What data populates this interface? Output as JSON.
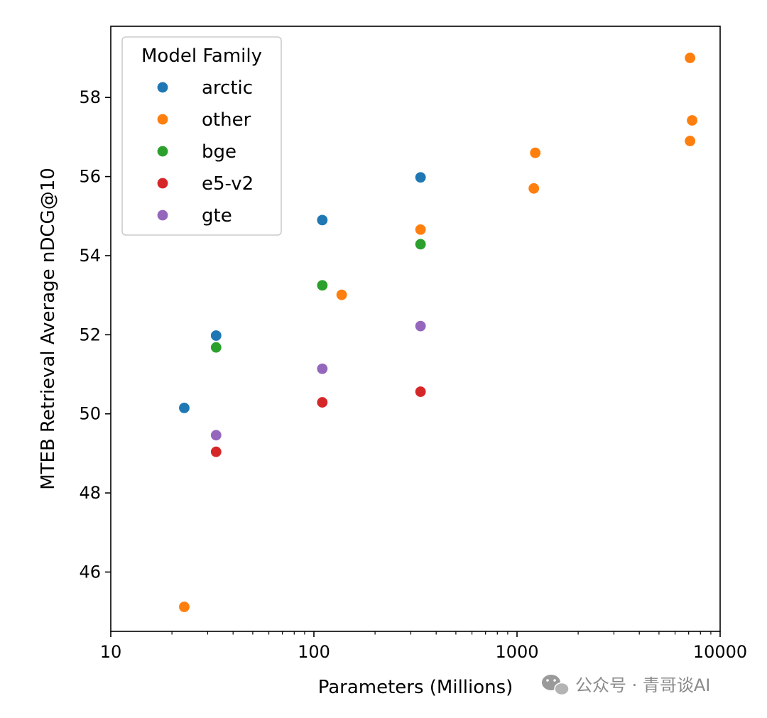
{
  "chart_data": {
    "type": "scatter",
    "title": "",
    "xlabel": "Parameters (Millions)",
    "ylabel": "MTEB Retrieval Average nDCG@10",
    "x_scale": "log",
    "xlim": [
      10,
      10000
    ],
    "ylim": [
      44.5,
      59.8
    ],
    "x_ticks": [
      10,
      100,
      1000,
      10000
    ],
    "x_tick_labels": [
      "10",
      "100",
      "1000",
      "10000"
    ],
    "y_ticks": [
      46,
      48,
      50,
      52,
      54,
      56,
      58
    ],
    "y_tick_labels": [
      "46",
      "48",
      "50",
      "52",
      "54",
      "56",
      "58"
    ],
    "grid": false,
    "legend": {
      "title": "Model Family",
      "placement": "upper-left"
    },
    "series": [
      {
        "name": "arctic",
        "color": "#1f77b4",
        "points": [
          {
            "x": 23,
            "y": 50.15
          },
          {
            "x": 33,
            "y": 51.98
          },
          {
            "x": 110,
            "y": 54.9
          },
          {
            "x": 335,
            "y": 55.98
          }
        ]
      },
      {
        "name": "other",
        "color": "#ff7f0e",
        "points": [
          {
            "x": 23,
            "y": 45.12
          },
          {
            "x": 137,
            "y": 53.01
          },
          {
            "x": 335,
            "y": 54.66
          },
          {
            "x": 1210,
            "y": 55.7
          },
          {
            "x": 1230,
            "y": 56.6
          },
          {
            "x": 7110,
            "y": 59.0
          },
          {
            "x": 7110,
            "y": 56.9
          },
          {
            "x": 7280,
            "y": 57.42
          }
        ]
      },
      {
        "name": "bge",
        "color": "#2ca02c",
        "points": [
          {
            "x": 33,
            "y": 51.68
          },
          {
            "x": 110,
            "y": 53.25
          },
          {
            "x": 335,
            "y": 54.29
          }
        ]
      },
      {
        "name": "e5-v2",
        "color": "#d62728",
        "points": [
          {
            "x": 33,
            "y": 49.04
          },
          {
            "x": 110,
            "y": 50.29
          },
          {
            "x": 335,
            "y": 50.56
          }
        ]
      },
      {
        "name": "gte",
        "color": "#9467bd",
        "points": [
          {
            "x": 33,
            "y": 49.46
          },
          {
            "x": 110,
            "y": 51.14
          },
          {
            "x": 335,
            "y": 52.22
          }
        ]
      }
    ]
  },
  "watermark": {
    "text": "公众号 · 青哥谈AI",
    "icon": "wechat-icon"
  }
}
